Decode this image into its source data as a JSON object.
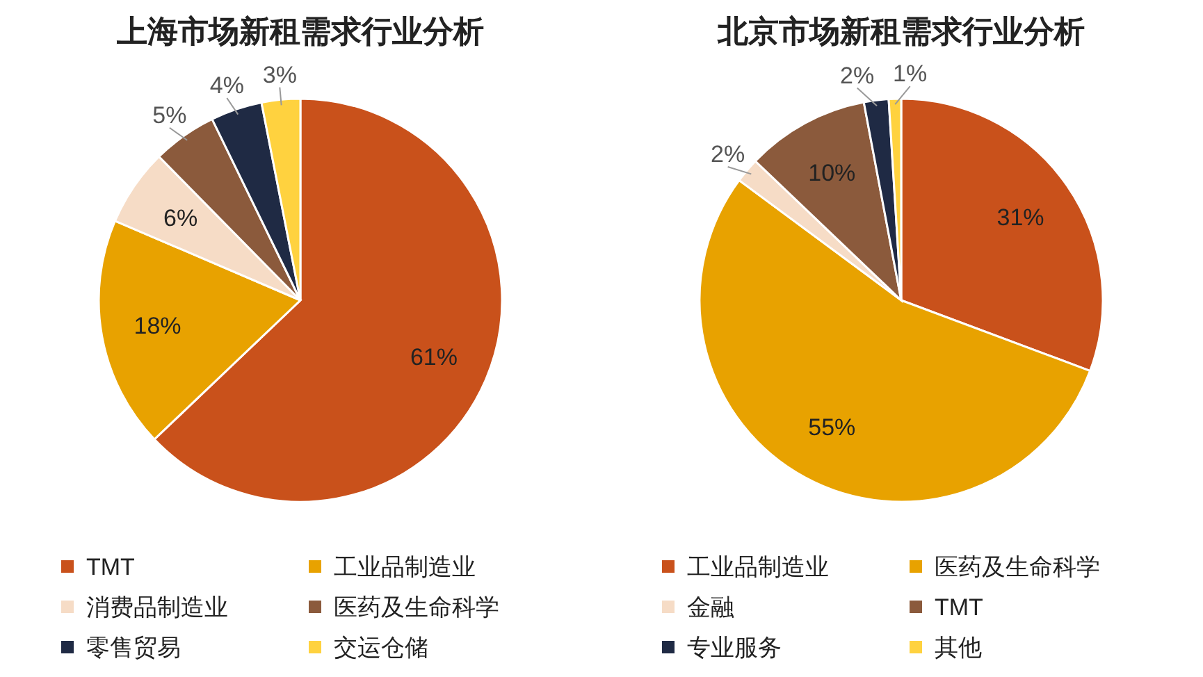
{
  "chart_data": [
    {
      "type": "pie",
      "title": "上海市场新租需求行业分析",
      "categories": [
        "TMT",
        "工业品制造业",
        "消费品制造业",
        "医药及生命科学",
        "零售贸易",
        "交运仓储"
      ],
      "values": [
        61,
        18,
        6,
        5,
        4,
        3
      ],
      "colors": [
        "#c9511b",
        "#e8a200",
        "#f6dcc6",
        "#8b5a3c",
        "#1f2a44",
        "#ffd23f"
      ],
      "value_labels": [
        "61%",
        "18%",
        "6%",
        "5%",
        "4%",
        "3%"
      ],
      "legend": "bottom"
    },
    {
      "type": "pie",
      "title": "北京市场新租需求行业分析",
      "categories": [
        "工业品制造业",
        "医药及生命科学",
        "金融",
        "TMT",
        "专业服务",
        "其他"
      ],
      "values": [
        31,
        55,
        2,
        10,
        2,
        1
      ],
      "colors": [
        "#c9511b",
        "#e8a200",
        "#f6dcc6",
        "#8b5a3c",
        "#1f2a44",
        "#ffd23f"
      ],
      "value_labels": [
        "31%",
        "55%",
        "2%",
        "10%",
        "2%",
        "1%"
      ],
      "legend": "bottom"
    }
  ]
}
